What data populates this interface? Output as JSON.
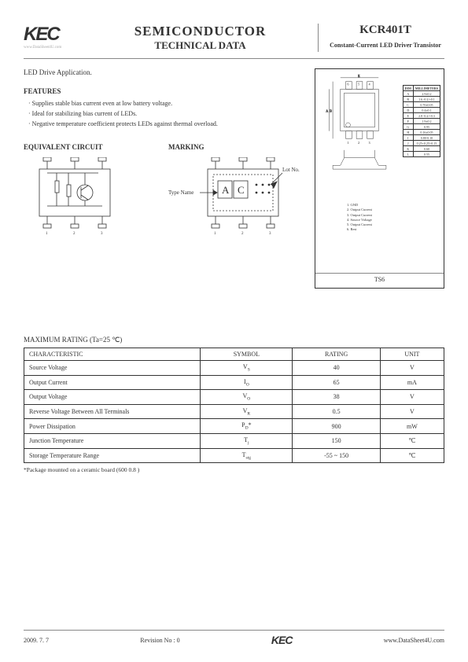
{
  "header": {
    "logo": "KEC",
    "logo_tag": "www.DataSheet4U.com",
    "title1": "SEMICONDUCTOR",
    "title2": "TECHNICAL DATA",
    "part": "KCR401T",
    "desc": "Constant-Current LED Driver Transistor"
  },
  "application": "LED Drive Application.",
  "features": {
    "heading": "FEATURES",
    "items": [
      "Supplies stable bias current even at low battery voltage.",
      "Ideal for stabilizing bias current of LEDs.",
      "Negative temperature coefficient protects LEDs against thermal overload."
    ]
  },
  "equivalent": {
    "heading": "EQUIVALENT CIRCUIT"
  },
  "marking": {
    "heading": "MARKING",
    "type_label": "Type Name",
    "lot_label": "Lot No.",
    "marks": [
      "A",
      "C"
    ]
  },
  "package": {
    "name": "TS6",
    "dimensions": {
      "header": [
        "DIM",
        "MILLIMETERS"
      ],
      "rows": [
        [
          "A",
          "2.9±0.2"
        ],
        [
          "B",
          "1.6 -0.2/+0.1"
        ],
        [
          "C",
          "0.70±0.05"
        ],
        [
          "D",
          "0.4±0.1"
        ],
        [
          "E",
          "2.8 -0.2/+0.3"
        ],
        [
          "F",
          "1.9±0.2"
        ],
        [
          "G",
          "0.95"
        ],
        [
          "H",
          "0.16±0.05"
        ],
        [
          "I",
          "0.80-0.10"
        ],
        [
          "J",
          "0.25+0.25/-0.15"
        ],
        [
          "K",
          "0.60"
        ],
        [
          "L",
          "0.55"
        ]
      ]
    },
    "pins": [
      "1. GND",
      "2. Output Current",
      "3. Output Current",
      "4. Source Voltage",
      "5. Output Current",
      "6. Rest"
    ]
  },
  "ratings": {
    "heading": "MAXIMUM RATING  (Ta=25 ℃)",
    "columns": [
      "CHARACTERISTIC",
      "SYMBOL",
      "RATING",
      "UNIT"
    ],
    "rows": [
      {
        "c": "Source Voltage",
        "s": "V",
        "sub": "S",
        "r": "40",
        "u": "V"
      },
      {
        "c": "Output Current",
        "s": "I",
        "sub": "O",
        "r": "65",
        "u": "mA"
      },
      {
        "c": "Output Voltage",
        "s": "V",
        "sub": "O",
        "r": "38",
        "u": "V"
      },
      {
        "c": "Reverse Voltage Between All Terminals",
        "s": "V",
        "sub": "R",
        "r": "0.5",
        "u": "V"
      },
      {
        "c": "Power Dissipation",
        "s": "P",
        "sub": "D",
        "suf": "*",
        "r": "900",
        "u": "mW"
      },
      {
        "c": "Junction Temperature",
        "s": "T",
        "sub": "j",
        "r": "150",
        "u": "℃"
      },
      {
        "c": "Storage Temperature Range",
        "s": "T",
        "sub": "stg",
        "r": "-55 ~ 150",
        "u": "℃"
      }
    ],
    "note": "*Package mounted on a ceramic board (600      0.8   )"
  },
  "footer": {
    "date": "2009. 7. 7",
    "rev": "Revision No : 0",
    "url": "www.DataSheet4U.com"
  },
  "colors": {
    "line": "#333",
    "light": "#888"
  }
}
